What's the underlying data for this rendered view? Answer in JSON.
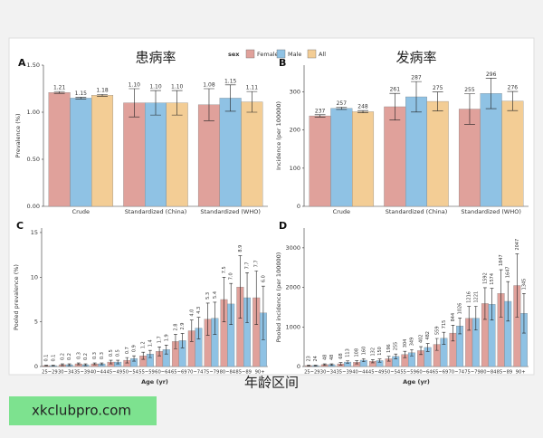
{
  "legend_title": "sex",
  "caption": "年龄区间",
  "watermark": "xkclubpro.com",
  "chart_data": [
    {
      "type": "bar",
      "label": "A",
      "title": "患病率",
      "y_label": "Prevalence (%)",
      "categories": [
        "Crude",
        "Standardized (China)",
        "Standardized (WHO)"
      ],
      "series": [
        {
          "name": "Female",
          "color": "#e0a19b",
          "values": [
            1.21,
            1.1,
            1.08
          ],
          "value_labels": [
            "1.21",
            "1.10",
            "1.08"
          ],
          "errors": [
            0.01,
            0.15,
            0.17
          ]
        },
        {
          "name": "Male",
          "color": "#8fc2e4",
          "values": [
            1.15,
            1.1,
            1.15
          ],
          "value_labels": [
            "1.15",
            "1.10",
            "1.15"
          ],
          "errors": [
            0.01,
            0.13,
            0.14
          ]
        },
        {
          "name": "All",
          "color": "#f3cd95",
          "values": [
            1.18,
            1.1,
            1.11
          ],
          "value_labels": [
            "1.18",
            "1.10",
            "1.11"
          ],
          "errors": [
            0.01,
            0.13,
            0.11
          ]
        }
      ],
      "ylim": [
        0,
        1.5
      ],
      "yticks": [
        {
          "value": 0,
          "label": "0.00"
        },
        {
          "value": 0.5,
          "label": "0.50"
        },
        {
          "value": 1,
          "label": "1.00"
        },
        {
          "value": 1.5,
          "label": "1.50"
        }
      ]
    },
    {
      "type": "bar",
      "label": "B",
      "title": "发病率",
      "y_label": "Incidence (per 100000)",
      "categories": [
        "Crude",
        "Standardized (China)",
        "Standardized (WHO)"
      ],
      "series": [
        {
          "name": "Female",
          "color": "#e0a19b",
          "values": [
            237,
            261,
            255
          ],
          "errors": [
            3,
            35,
            40
          ]
        },
        {
          "name": "Male",
          "color": "#8fc2e4",
          "values": [
            257,
            287,
            296
          ],
          "errors": [
            3,
            40,
            40
          ]
        },
        {
          "name": "All",
          "color": "#f3cd95",
          "values": [
            248,
            275,
            276
          ],
          "errors": [
            3,
            25,
            25
          ]
        }
      ],
      "ylim": [
        0,
        370
      ],
      "yticks": [
        0,
        100,
        200,
        300
      ]
    },
    {
      "type": "bar",
      "label": "C",
      "y_label": "Pooled prevalence (%)",
      "x_label": "Age (yr)",
      "categories": [
        "25~29",
        "30~34",
        "35~39",
        "40~44",
        "45~49",
        "50~54",
        "55~59",
        "60~64",
        "65~69",
        "70~74",
        "75~79",
        "80~84",
        "85~89",
        "90+"
      ],
      "series": [
        {
          "name": "Female",
          "color": "#e0a19b",
          "values": [
            0.1,
            0.2,
            0.3,
            0.3,
            0.5,
            0.7,
            1.2,
            1.7,
            2.8,
            4.0,
            5.3,
            7.5,
            8.9,
            7.7
          ],
          "value_labels": [
            "0.1",
            "0.2",
            "0.3",
            "0.3",
            "0.5",
            "0.7",
            "1.2",
            "1.7",
            "2.8",
            "4.0",
            "5.3",
            "7.5",
            "8.9",
            "7.7"
          ],
          "errors": [
            0.05,
            0.1,
            0.1,
            0.1,
            0.2,
            0.3,
            0.4,
            0.5,
            0.8,
            1.2,
            1.8,
            2.5,
            3.5,
            3.0
          ]
        },
        {
          "name": "Male",
          "color": "#8fc2e4",
          "values": [
            0.1,
            0.2,
            0.2,
            0.3,
            0.5,
            0.9,
            1.4,
            1.9,
            2.9,
            4.3,
            5.4,
            7.0,
            7.7,
            6.0
          ],
          "value_labels": [
            "0.1",
            "0.2",
            "0.2",
            "0.3",
            "0.5",
            "0.9",
            "1.4",
            "1.9",
            "2.9",
            "4.3",
            "5.4",
            "7.0",
            "7.7",
            "6.0"
          ],
          "errors": [
            0.05,
            0.1,
            0.1,
            0.1,
            0.2,
            0.3,
            0.4,
            0.5,
            0.8,
            1.2,
            1.8,
            2.3,
            2.8,
            3.0
          ]
        }
      ],
      "ylim": [
        0,
        15.5
      ],
      "yticks": [
        0,
        5,
        10,
        15
      ]
    },
    {
      "type": "bar",
      "label": "D",
      "y_label": "Pooled incidence (per 100000)",
      "x_label": "Age (yr)",
      "categories": [
        "25~29",
        "30~34",
        "35~39",
        "40~44",
        "45~49",
        "50~54",
        "55~59",
        "60~64",
        "65~69",
        "70~74",
        "75~79",
        "80~84",
        "85~89",
        "90+"
      ],
      "series": [
        {
          "name": "Female",
          "color": "#e0a19b",
          "values": [
            23,
            48,
            68,
            108,
            132,
            196,
            304,
            402,
            559,
            844,
            1216,
            1592,
            1847,
            2047
          ],
          "errors": [
            10,
            20,
            30,
            40,
            40,
            60,
            80,
            100,
            150,
            200,
            300,
            400,
            600,
            800
          ]
        },
        {
          "name": "Male",
          "color": "#8fc2e4",
          "values": [
            24,
            48,
            113,
            160,
            150,
            255,
            349,
            482,
            715,
            1026,
            1221,
            1574,
            1647,
            1345
          ],
          "errors": [
            10,
            20,
            30,
            40,
            40,
            60,
            80,
            100,
            150,
            200,
            300,
            400,
            500,
            500
          ]
        }
      ],
      "ylim": [
        0,
        3500
      ],
      "yticks": [
        0,
        1000,
        2000,
        3000
      ]
    }
  ]
}
